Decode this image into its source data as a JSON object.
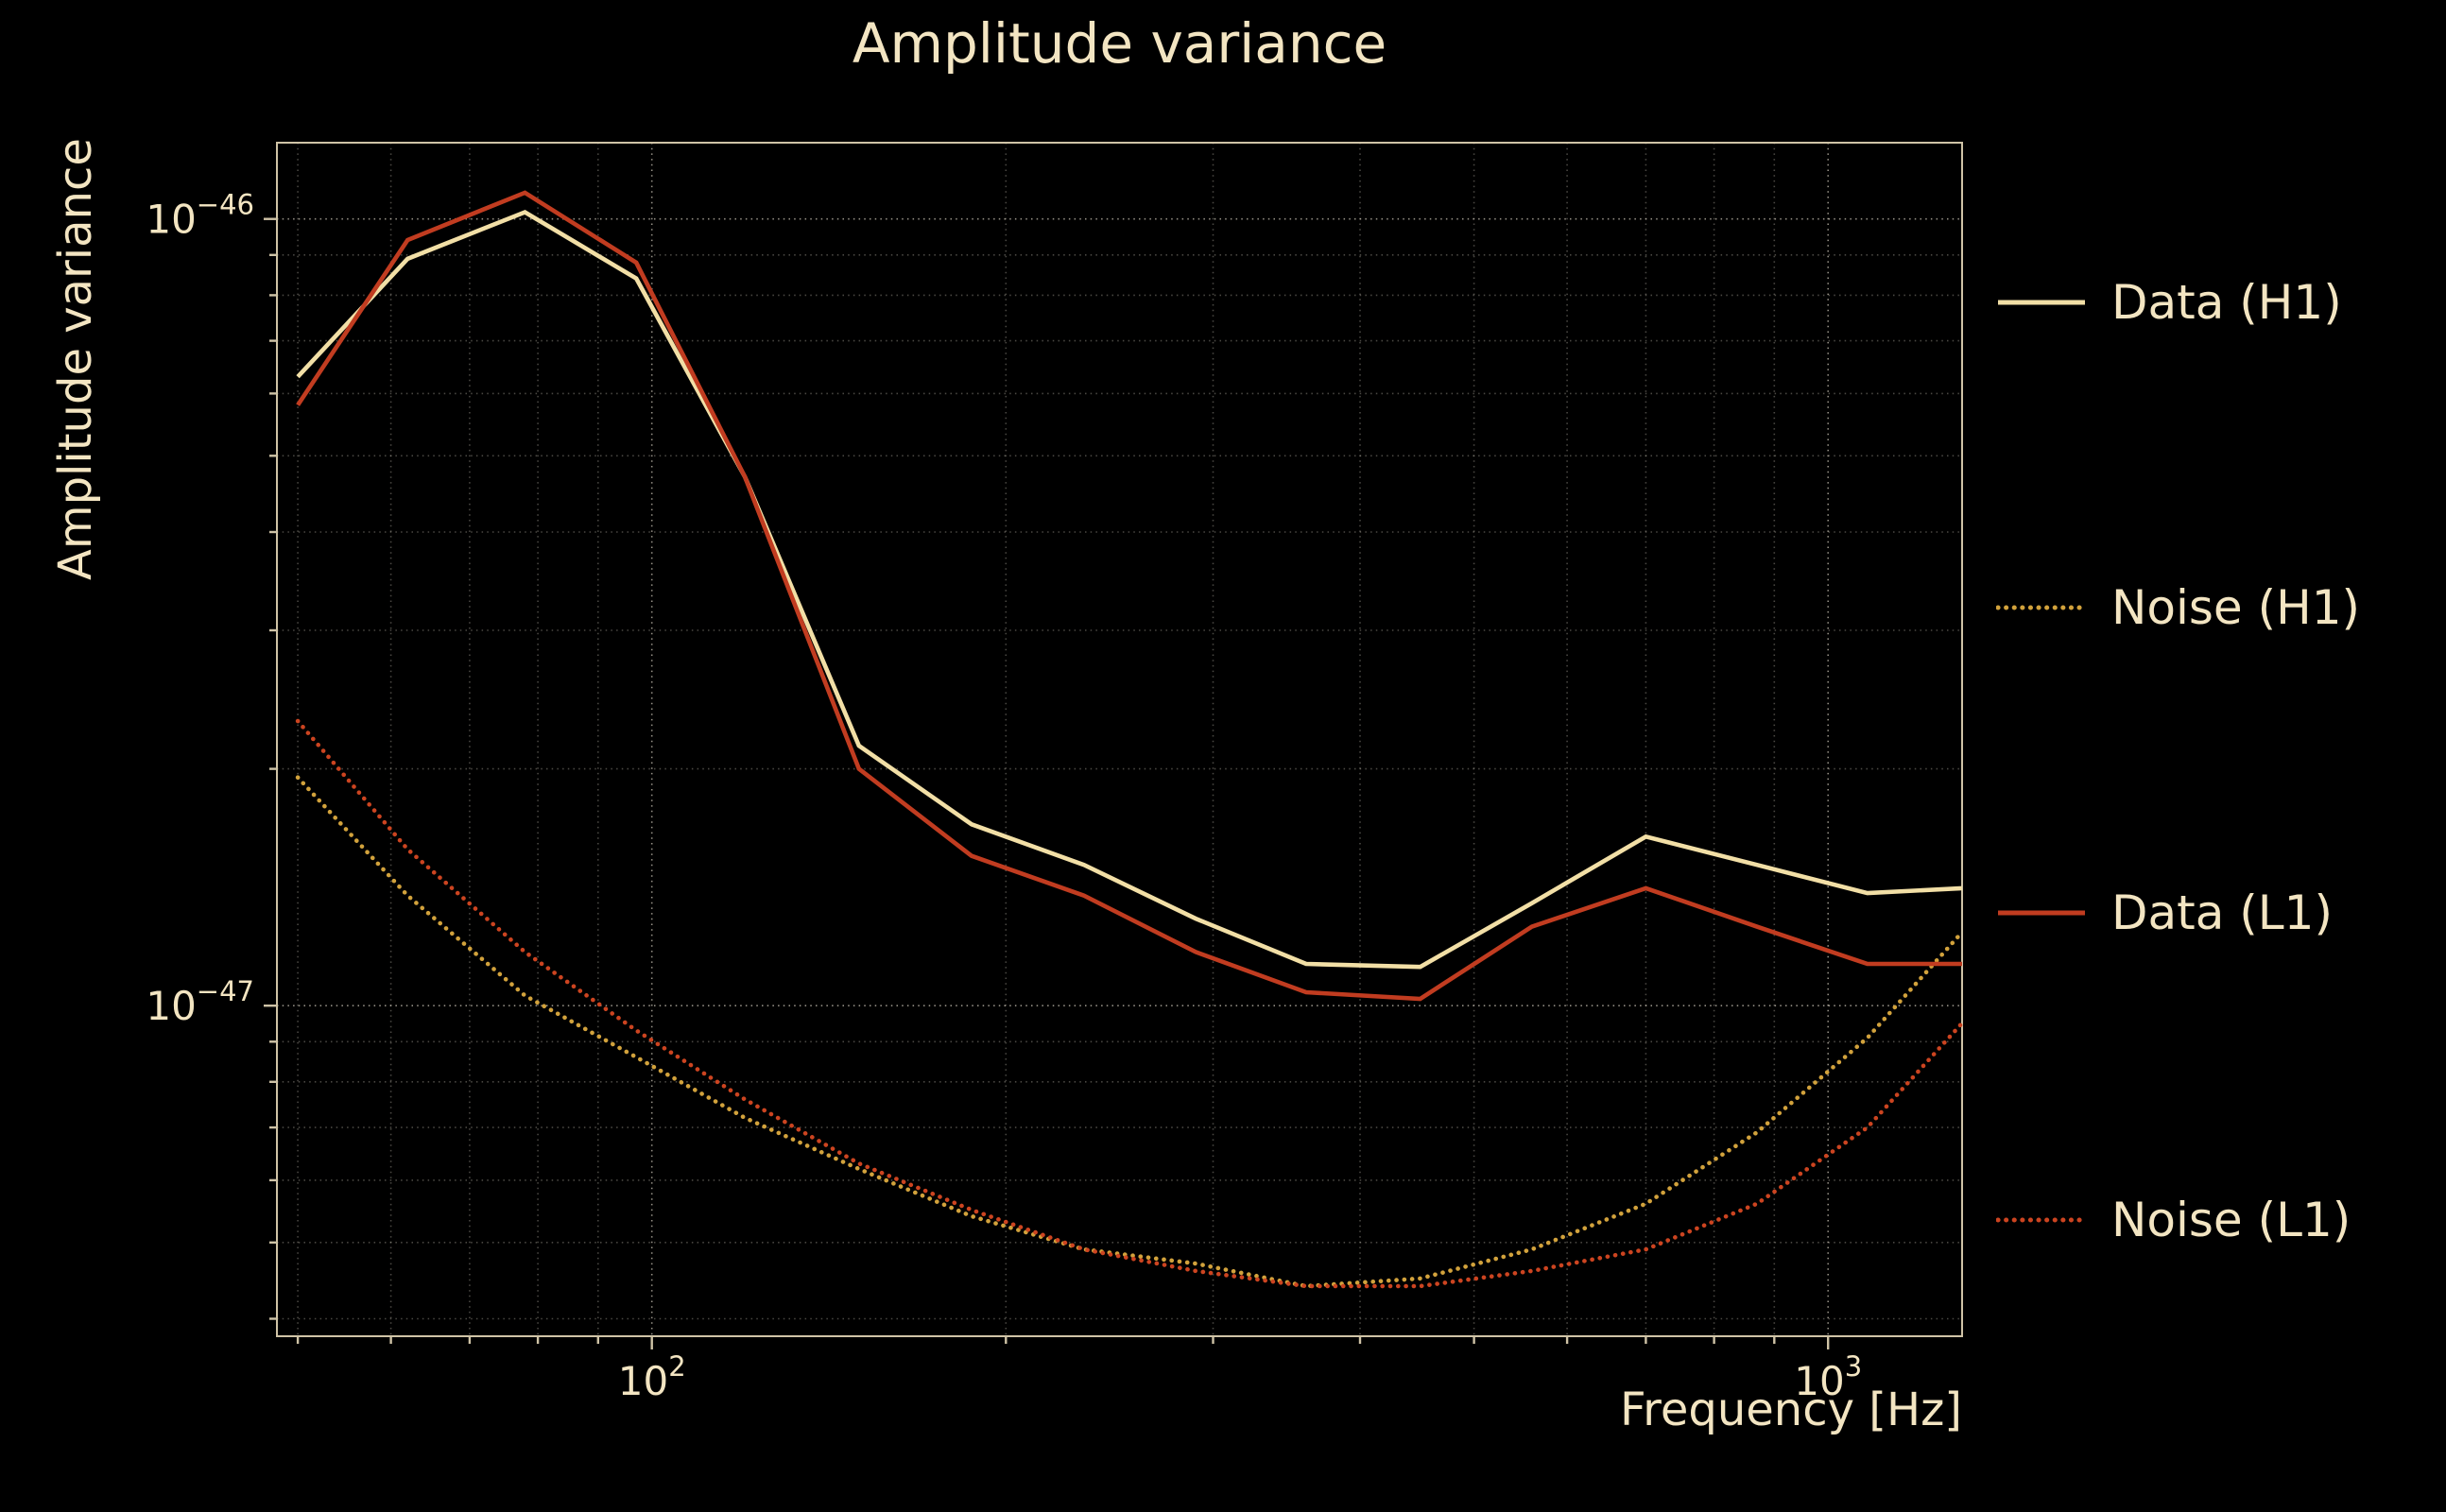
{
  "page": {
    "background": "#000000",
    "text_color": "#f3e5c2"
  },
  "chart_data": {
    "type": "line",
    "title": "Amplitude variance",
    "xlabel": "Frequency [Hz]",
    "ylabel": "Amplitude variance",
    "x_scale": "log",
    "y_scale": "log",
    "xlim": [
      48,
      1300
    ],
    "ylim": [
      3.8e-48,
      1.25e-46
    ],
    "grid": true,
    "legend_position": "right-outside",
    "x_major_ticks": [
      {
        "value": 100,
        "base": "10",
        "exp": "2"
      },
      {
        "value": 1000,
        "base": "10",
        "exp": "3"
      }
    ],
    "y_major_ticks": [
      {
        "value": 1e-46,
        "base": "10",
        "exp": "−46"
      },
      {
        "value": 1e-47,
        "base": "10",
        "exp": "−47"
      }
    ],
    "x": [
      50,
      62,
      78,
      97,
      120,
      150,
      187,
      233,
      290,
      360,
      450,
      560,
      700,
      870,
      1080,
      1300
    ],
    "series": [
      {
        "name": "Data (H1)",
        "color": "#f2dfa6",
        "style": "solid",
        "values": [
          6.3e-47,
          8.9e-47,
          1.02e-46,
          8.4e-47,
          4.7e-47,
          2.14e-47,
          1.7e-47,
          1.51e-47,
          1.29e-47,
          1.13e-47,
          1.12e-47,
          1.35e-47,
          1.64e-47,
          1.51e-47,
          1.39e-47,
          1.41e-47
        ]
      },
      {
        "name": "Noise (H1)",
        "color": "#d2a23c",
        "style": "dotted",
        "values": [
          1.95e-47,
          1.38e-47,
          1.03e-47,
          8.6e-48,
          7.2e-48,
          6.2e-48,
          5.4e-48,
          4.9e-48,
          4.7e-48,
          4.4e-48,
          4.5e-48,
          4.9e-48,
          5.6e-48,
          6.9e-48,
          9.1e-48,
          1.24e-47
        ]
      },
      {
        "name": "Data (L1)",
        "color": "#c13c20",
        "style": "solid",
        "values": [
          5.8e-47,
          9.4e-47,
          1.08e-46,
          8.8e-47,
          4.7e-47,
          2e-47,
          1.55e-47,
          1.38e-47,
          1.17e-47,
          1.04e-47,
          1.02e-47,
          1.26e-47,
          1.41e-47,
          1.26e-47,
          1.13e-47,
          1.13e-47
        ]
      },
      {
        "name": "Noise (L1)",
        "color": "#cc4420",
        "style": "dotted",
        "values": [
          2.3e-47,
          1.58e-47,
          1.17e-47,
          9.3e-48,
          7.6e-48,
          6.3e-48,
          5.5e-48,
          4.9e-48,
          4.6e-48,
          4.4e-48,
          4.4e-48,
          4.6e-48,
          4.9e-48,
          5.6e-48,
          7e-48,
          9.5e-48
        ]
      }
    ]
  }
}
